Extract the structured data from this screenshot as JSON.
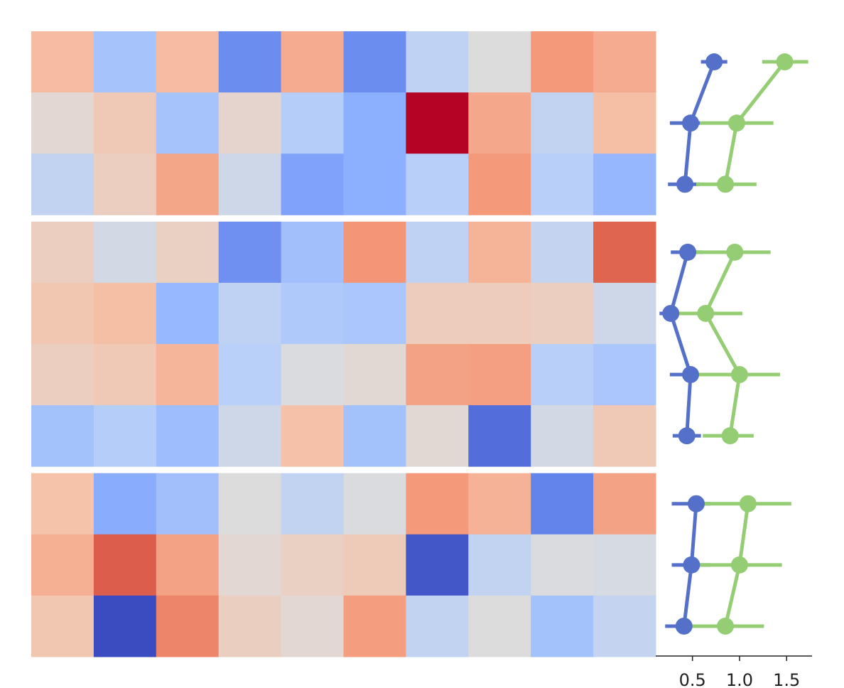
{
  "chart_data": {
    "type": "heatmap",
    "colormap": "coolwarm",
    "clim": [
      -1,
      1
    ],
    "blocks": [
      {
        "values": [
          [
            0.3,
            -0.35,
            0.3,
            -0.7,
            0.4,
            -0.7,
            -0.2,
            0,
            0.5,
            0.4
          ],
          [
            0.05,
            0.2,
            -0.35,
            0.08,
            -0.27,
            -0.5,
            1.0,
            0.42,
            -0.18,
            0.28
          ],
          [
            -0.18,
            0.15,
            0.43,
            -0.1,
            -0.58,
            -0.5,
            -0.25,
            0.5,
            -0.25,
            -0.45
          ]
        ],
        "series": [
          {
            "color": "#5470c8",
            "values": [
              0.73,
              0.48,
              0.42
            ],
            "ci": [
              [
                0.59,
                0.87
              ],
              [
                0.26,
                0.58
              ],
              [
                0.24,
                0.58
              ]
            ]
          },
          {
            "color": "#94cd73",
            "values": [
              1.48,
              0.97,
              0.85
            ],
            "ci": [
              [
                1.24,
                1.73
              ],
              [
                0.58,
                1.36
              ],
              [
                0.54,
                1.18
              ]
            ]
          }
        ]
      },
      {
        "values": [
          [
            0.15,
            -0.07,
            0.13,
            -0.68,
            -0.38,
            0.52,
            -0.2,
            0.35,
            -0.17,
            0.75
          ],
          [
            0.22,
            0.28,
            -0.44,
            -0.2,
            -0.3,
            -0.33,
            0.17,
            0.17,
            0.15,
            -0.1
          ],
          [
            0.15,
            0.2,
            0.34,
            -0.24,
            -0.02,
            0.04,
            0.45,
            0.47,
            -0.25,
            -0.33
          ],
          [
            -0.37,
            -0.27,
            -0.4,
            -0.1,
            0.27,
            -0.37,
            0.04,
            -0.85,
            -0.07,
            0.2
          ]
        ],
        "series": [
          {
            "color": "#5470c8",
            "values": [
              0.45,
              0.27,
              0.48,
              0.44
            ],
            "ci": [
              [
                0.27,
                0.61
              ],
              [
                0.15,
                0.42
              ],
              [
                0.26,
                0.69
              ],
              [
                0.29,
                0.59
              ]
            ]
          },
          {
            "color": "#94cd73",
            "values": [
              0.95,
              0.64,
              1.0,
              0.9
            ],
            "ci": [
              [
                0.54,
                1.33
              ],
              [
                0.35,
                1.03
              ],
              [
                0.54,
                1.43
              ],
              [
                0.61,
                1.15
              ]
            ]
          }
        ]
      },
      {
        "values": [
          [
            0.26,
            -0.52,
            -0.38,
            0,
            -0.18,
            -0.03,
            0.5,
            0.36,
            -0.75,
            0.45
          ],
          [
            0.37,
            0.77,
            0.45,
            0.05,
            0.13,
            0.18,
            -0.95,
            -0.18,
            -0.03,
            -0.05
          ],
          [
            0.22,
            -1.0,
            0.6,
            0.14,
            0.05,
            0.48,
            -0.18,
            0,
            -0.37,
            -0.17
          ]
        ],
        "series": [
          {
            "color": "#5470c8",
            "values": [
              0.54,
              0.49,
              0.41
            ],
            "ci": [
              [
                0.28,
                0.69
              ],
              [
                0.28,
                0.69
              ],
              [
                0.21,
                0.61
              ]
            ]
          },
          {
            "color": "#94cd73",
            "values": [
              1.09,
              1.0,
              0.85
            ],
            "ci": [
              [
                0.61,
                1.55
              ],
              [
                0.55,
                1.45
              ],
              [
                0.44,
                1.26
              ]
            ]
          }
        ]
      }
    ],
    "xlim": [
      0.11,
      1.77
    ],
    "xticks": [
      0.5,
      {
        "value": 1.0,
        "label": "1.0"
      },
      1.5
    ]
  }
}
